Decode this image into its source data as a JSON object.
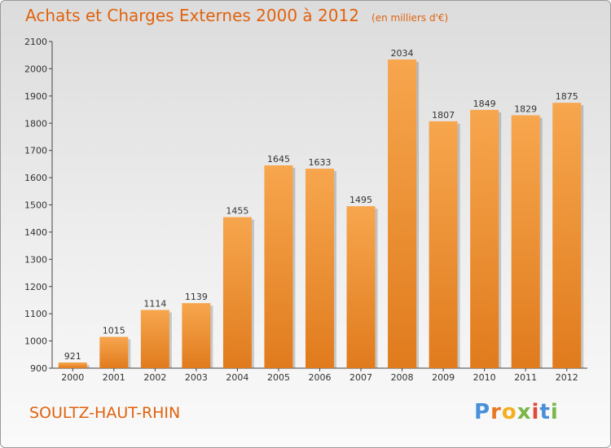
{
  "title": "Achats et Charges Externes 2000 à 2012",
  "subtitle": "(en milliers d'€)",
  "city": "SOULTZ-HAUT-RHIN",
  "brand": {
    "letters": [
      "P",
      "r",
      "o",
      "x",
      "i",
      "t",
      "i"
    ],
    "colors": [
      "#4a90d9",
      "#e87722",
      "#f2b01e",
      "#7ab648",
      "#e04a3a",
      "#4a90d9",
      "#7ab648"
    ]
  },
  "colors": {
    "bar_light": "#f7a64e",
    "bar_dark": "#e07b1d",
    "accent": "#e0620e"
  },
  "chart_data": {
    "type": "bar",
    "title": "Achats et Charges Externes 2000 à 2012",
    "subtitle": "(en milliers d'€)",
    "categories": [
      "2000",
      "2001",
      "2002",
      "2003",
      "2004",
      "2005",
      "2006",
      "2007",
      "2008",
      "2009",
      "2010",
      "2011",
      "2012"
    ],
    "values": [
      921,
      1015,
      1114,
      1139,
      1455,
      1645,
      1633,
      1495,
      2034,
      1807,
      1849,
      1829,
      1875
    ],
    "ylim": [
      900,
      2100
    ],
    "yticks": [
      900,
      1000,
      1100,
      1200,
      1300,
      1400,
      1500,
      1600,
      1700,
      1800,
      1900,
      2000,
      2100
    ],
    "grid": false,
    "legend": "none"
  }
}
